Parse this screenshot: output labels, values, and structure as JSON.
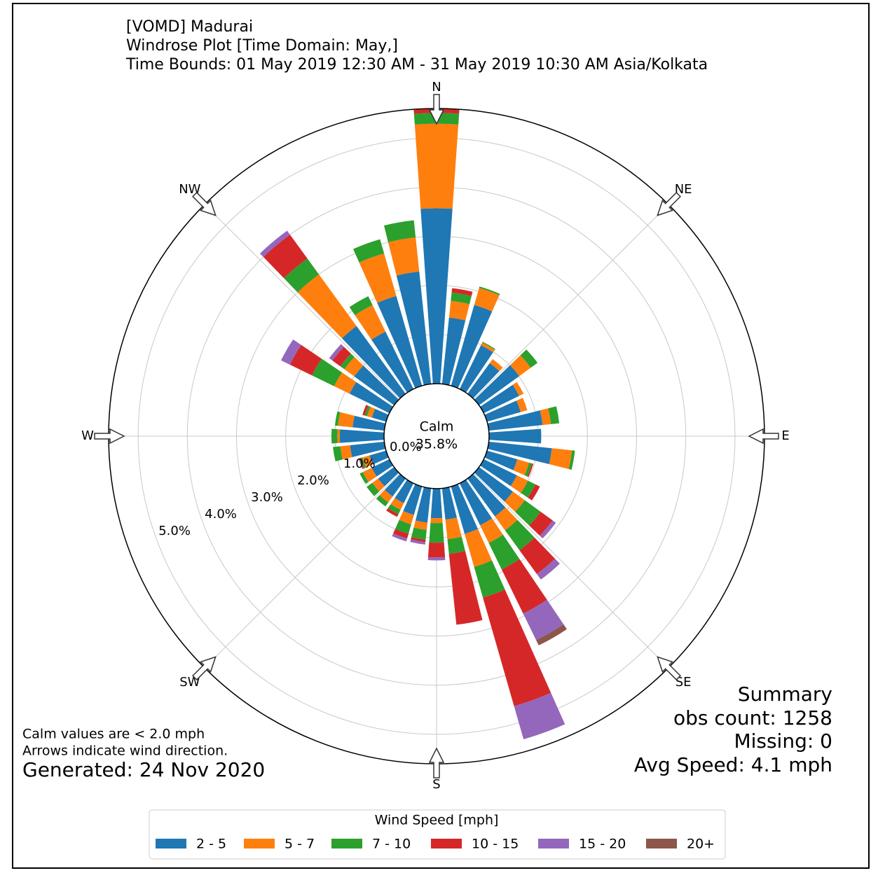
{
  "chart_data": {
    "type": "windrose",
    "title_lines": [
      "[VOMD] Madurai",
      "Windrose Plot [Time Domain: May,]",
      "Time Bounds: 01 May 2019 12:30 AM - 31 May 2019 10:30 AM Asia/Kolkata"
    ],
    "theta": [
      0,
      10,
      20,
      30,
      40,
      50,
      60,
      70,
      80,
      90,
      100,
      110,
      120,
      130,
      140,
      150,
      160,
      170,
      180,
      190,
      200,
      210,
      220,
      230,
      240,
      250,
      260,
      270,
      280,
      290,
      300,
      310,
      320,
      330,
      340,
      350
    ],
    "thetaticks": [
      {
        "value": 0,
        "label": "N"
      },
      {
        "value": 45,
        "label": "NE"
      },
      {
        "value": 90,
        "label": "E"
      },
      {
        "value": 135,
        "label": "SE"
      },
      {
        "value": 180,
        "label": "S"
      },
      {
        "value": 225,
        "label": "SW"
      },
      {
        "value": 270,
        "label": "W"
      },
      {
        "value": 315,
        "label": "NW"
      }
    ],
    "rlim": [
      0,
      5.6
    ],
    "rticks": [
      {
        "value": 0,
        "label": "0.0%"
      },
      {
        "value": 1,
        "label": "1.0%"
      },
      {
        "value": 2,
        "label": "2.0%"
      },
      {
        "value": 3,
        "label": "3.0%"
      },
      {
        "value": 4,
        "label": "4.0%"
      },
      {
        "value": 5,
        "label": "5.0%"
      }
    ],
    "calm_label": "Calm",
    "calm_value": 35.8,
    "calm_value_label": "35.8%",
    "legend_title": "Wind Speed [mph]",
    "series": [
      {
        "name": "2 - 5",
        "color": "#1f77b4",
        "values": [
          3.57,
          1.36,
          1.71,
          0.99,
          0.77,
          1.01,
          0.8,
          0.71,
          1.1,
          1.06,
          1.29,
          0.64,
          0.75,
          0.85,
          0.95,
          0.95,
          1.0,
          0.64,
          0.6,
          0.7,
          0.6,
          0.45,
          0.45,
          0.4,
          0.4,
          0.35,
          0.7,
          0.9,
          0.65,
          0.3,
          0.9,
          1.0,
          1.7,
          1.3,
          1.9,
          2.3
        ]
      },
      {
        "name": "5 - 7",
        "color": "#ff7f0e",
        "values": [
          1.72,
          0.34,
          0.36,
          0.06,
          0.1,
          0.29,
          0.1,
          0.14,
          0.17,
          0,
          0.41,
          0.25,
          0.25,
          0.3,
          0.35,
          0.4,
          0.7,
          0.4,
          0.1,
          0.15,
          0.2,
          0.15,
          0.15,
          0.15,
          0.2,
          0.15,
          0.2,
          0.05,
          0.3,
          0.1,
          0.35,
          0.25,
          1.3,
          0.6,
          0.9,
          0.7
        ]
      },
      {
        "name": "7 - 10",
        "color": "#2ca02c",
        "values": [
          0.22,
          0.17,
          0.03,
          0.02,
          0,
          0.17,
          0,
          0,
          0.17,
          0,
          0.06,
          0.06,
          0.17,
          0.4,
          0.5,
          0.6,
          0.65,
          0.3,
          0.4,
          0.2,
          0.2,
          0.1,
          0.1,
          0.14,
          0.07,
          0.03,
          0.15,
          0.12,
          0.06,
          0.05,
          0.5,
          0.1,
          0.4,
          0.2,
          0.3,
          0.35
        ]
      },
      {
        "name": "10 - 15",
        "color": "#d62728",
        "values": [
          0.08,
          0.09,
          0,
          0,
          0,
          0,
          0,
          0,
          0,
          0,
          0,
          0.03,
          0.1,
          0.3,
          0.6,
          1.0,
          2.3,
          1.45,
          0.3,
          0.05,
          0.1,
          0.06,
          0,
          0,
          0,
          0,
          0,
          0,
          0,
          0.05,
          0.5,
          0.2,
          0.6,
          0,
          0,
          0
        ]
      },
      {
        "name": "15 - 20",
        "color": "#9467bd",
        "values": [
          0,
          0,
          0,
          0,
          0,
          0,
          0,
          0,
          0,
          0,
          0,
          0,
          0,
          0.08,
          0.14,
          0.6,
          0.7,
          0,
          0.06,
          0.05,
          0.06,
          0,
          0,
          0,
          0,
          0,
          0,
          0,
          0,
          0,
          0.2,
          0.08,
          0.1,
          0,
          0,
          0
        ]
      },
      {
        "name": "20+",
        "color": "#8c564b",
        "values": [
          0,
          0,
          0,
          0,
          0,
          0,
          0,
          0,
          0,
          0,
          0,
          0,
          0,
          0,
          0,
          0.12,
          0,
          0,
          0,
          0,
          0,
          0,
          0,
          0,
          0,
          0.05,
          0,
          0,
          0,
          0,
          0,
          0,
          0,
          0,
          0,
          0
        ]
      }
    ],
    "summary": [
      "Summary",
      "obs count: 1258",
      "Missing: 0",
      "Avg Speed: 4.1 mph"
    ],
    "notes": [
      "Calm values are < 2.0 mph",
      "Arrows indicate wind direction."
    ],
    "generated": "Generated: 24 Nov 2020"
  }
}
